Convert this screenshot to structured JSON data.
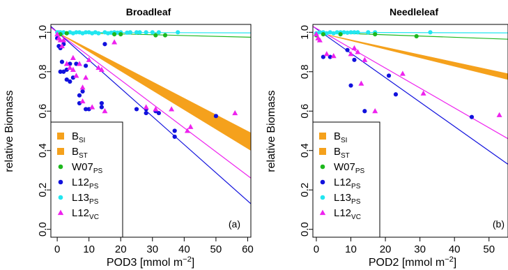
{
  "colors": {
    "B_band": "#f5a11c",
    "W07_PS": "#1db81d",
    "L12_PS": "#1111dd",
    "L13_PS": "#22e6f0",
    "L12_VC": "#ee22ee"
  },
  "legend": [
    {
      "key": "B_SI",
      "main": "B",
      "sub": "SI",
      "shape": "square",
      "color": "#f5a11c"
    },
    {
      "key": "B_ST",
      "main": "B",
      "sub": "ST",
      "shape": "square",
      "color": "#f5a11c"
    },
    {
      "key": "W07_PS",
      "main": "W07",
      "sub": "PS",
      "shape": "circle",
      "color": "#1db81d"
    },
    {
      "key": "L12_PS",
      "main": "L12",
      "sub": "PS",
      "shape": "circle",
      "color": "#1111dd"
    },
    {
      "key": "L13_PS",
      "main": "L13",
      "sub": "PS",
      "shape": "circle",
      "color": "#22e6f0"
    },
    {
      "key": "L12_VC",
      "main": "L12",
      "sub": "VC",
      "shape": "triangle",
      "color": "#ee22ee"
    }
  ],
  "chart_data": [
    {
      "type": "scatter",
      "title": "Broadleaf",
      "panel_tag": "(a)",
      "xlabel_main": "POD3 [mmol m",
      "xlabel_sup": "−2",
      "xlabel_end": "]",
      "ylabel": "relative Biomass",
      "xlim": [
        -2,
        61
      ],
      "ylim": [
        -0.04,
        1.04
      ],
      "xticks": [
        0,
        10,
        20,
        30,
        40,
        50,
        60
      ],
      "yticks": [
        0.0,
        0.2,
        0.4,
        0.6,
        0.8,
        1.0
      ],
      "band": {
        "x0": 0,
        "x1": 61,
        "lo": [
          1.0,
          0.4
        ],
        "hi": [
          1.0,
          0.49
        ]
      },
      "lines": [
        {
          "key": "W07_PS",
          "x0": 0,
          "y0": 1.0,
          "x1": 61,
          "y1": 0.975
        },
        {
          "key": "L13_PS",
          "x0": 0,
          "y0": 1.0,
          "x1": 61,
          "y1": 0.997
        },
        {
          "key": "L12_PS",
          "x0": -2,
          "y0": 1.03,
          "x1": 61,
          "y1": 0.13
        },
        {
          "key": "L12_VC",
          "x0": -2,
          "y0": 1.025,
          "x1": 61,
          "y1": 0.26
        }
      ],
      "series": [
        {
          "key": "L13_PS",
          "points": [
            [
              0,
              1.0
            ],
            [
              0.5,
              1.0
            ],
            [
              1,
              1.0
            ],
            [
              1.5,
              0.995
            ],
            [
              2,
              1.0
            ],
            [
              3,
              0.995
            ],
            [
              4,
              1.0
            ],
            [
              5,
              0.995
            ],
            [
              6,
              1.0
            ],
            [
              7,
              1.0
            ],
            [
              8,
              0.995
            ],
            [
              9,
              1.0
            ],
            [
              10,
              1.0
            ],
            [
              11,
              0.995
            ],
            [
              12,
              1.0
            ],
            [
              13,
              0.995
            ],
            [
              15,
              1.0
            ],
            [
              16,
              0.995
            ],
            [
              17,
              0.998
            ],
            [
              18,
              1.0
            ],
            [
              19,
              0.998
            ],
            [
              20,
              1.0
            ],
            [
              22,
              0.998
            ],
            [
              23,
              1.0
            ],
            [
              25,
              1.0
            ],
            [
              26,
              1.0
            ],
            [
              28,
              1.0
            ],
            [
              30,
              1.0
            ],
            [
              32,
              1.0
            ],
            [
              38,
              1.0
            ]
          ]
        },
        {
          "key": "W07_PS",
          "points": [
            [
              1,
              0.99
            ],
            [
              3,
              0.995
            ],
            [
              18,
              0.99
            ],
            [
              20,
              0.99
            ],
            [
              31,
              0.985
            ],
            [
              34,
              0.985
            ]
          ]
        },
        {
          "key": "L12_PS",
          "points": [
            [
              0,
              0.97
            ],
            [
              0.5,
              0.93
            ],
            [
              1,
              0.92
            ],
            [
              1.5,
              0.85
            ],
            [
              1,
              0.8
            ],
            [
              2,
              0.94
            ],
            [
              2,
              0.8
            ],
            [
              3,
              0.81
            ],
            [
              3,
              0.76
            ],
            [
              4,
              0.84
            ],
            [
              4,
              0.75
            ],
            [
              5,
              0.77
            ],
            [
              6,
              0.84
            ],
            [
              7,
              0.64
            ],
            [
              7,
              0.68
            ],
            [
              8,
              0.7
            ],
            [
              9,
              0.61
            ],
            [
              9,
              0.83
            ],
            [
              10,
              0.61
            ],
            [
              14,
              0.64
            ],
            [
              14,
              0.62
            ],
            [
              15,
              0.94
            ],
            [
              25,
              0.61
            ],
            [
              28,
              0.59
            ],
            [
              28,
              0.61
            ],
            [
              31,
              0.6
            ],
            [
              32,
              0.59
            ],
            [
              37,
              0.47
            ],
            [
              37,
              0.5
            ],
            [
              50,
              0.575
            ]
          ]
        },
        {
          "key": "L12_VC",
          "points": [
            [
              0,
              0.99
            ],
            [
              0.5,
              0.97
            ],
            [
              1,
              0.96
            ],
            [
              1.5,
              0.93
            ],
            [
              2,
              0.96
            ],
            [
              3,
              0.84
            ],
            [
              4,
              0.82
            ],
            [
              5,
              0.87
            ],
            [
              5,
              0.81
            ],
            [
              6,
              0.78
            ],
            [
              7,
              0.84
            ],
            [
              8,
              0.72
            ],
            [
              8,
              0.65
            ],
            [
              9,
              0.77
            ],
            [
              10,
              0.86
            ],
            [
              11,
              0.62
            ],
            [
              13,
              0.82
            ],
            [
              14,
              0.81
            ],
            [
              15,
              0.6
            ],
            [
              18,
              0.95
            ],
            [
              28,
              0.62
            ],
            [
              31,
              0.61
            ],
            [
              36,
              0.61
            ],
            [
              41,
              0.5
            ],
            [
              42,
              0.52
            ],
            [
              56,
              0.59
            ]
          ]
        }
      ]
    },
    {
      "type": "scatter",
      "title": "Needleleaf",
      "panel_tag": "(b)",
      "xlabel_main": "POD2 [mmol m",
      "xlabel_sup": "−2",
      "xlabel_end": "]",
      "ylabel": "relative Biomass",
      "xlim": [
        -1,
        55.5
      ],
      "ylim": [
        -0.04,
        1.04
      ],
      "xticks": [
        0,
        10,
        20,
        30,
        40,
        50
      ],
      "yticks": [
        0.0,
        0.2,
        0.4,
        0.6,
        0.8,
        1.0
      ],
      "band": {
        "x0": 0,
        "x1": 55.5,
        "lo": [
          1.0,
          0.76
        ],
        "hi": [
          1.0,
          0.79
        ]
      },
      "lines": [
        {
          "key": "W07_PS",
          "x0": 0,
          "y0": 1.0,
          "x1": 55.5,
          "y1": 0.965
        },
        {
          "key": "L13_PS",
          "x0": 0,
          "y0": 1.0,
          "x1": 55.5,
          "y1": 0.997
        },
        {
          "key": "L12_PS",
          "x0": -1,
          "y0": 1.03,
          "x1": 55.5,
          "y1": 0.33
        },
        {
          "key": "L12_VC",
          "x0": -1,
          "y0": 1.03,
          "x1": 55.5,
          "y1": 0.46
        }
      ],
      "series": [
        {
          "key": "L13_PS",
          "points": [
            [
              0,
              0.995
            ],
            [
              1,
              1.0
            ],
            [
              2,
              1.0
            ],
            [
              3,
              0.995
            ],
            [
              4,
              1.0
            ],
            [
              5,
              0.995
            ],
            [
              6,
              1.0
            ],
            [
              7,
              1.0
            ],
            [
              8,
              1.0
            ],
            [
              9,
              0.998
            ],
            [
              10,
              1.0
            ],
            [
              11,
              1.0
            ],
            [
              12,
              1.0
            ],
            [
              15,
              1.0
            ],
            [
              17,
              1.0
            ],
            [
              33,
              1.0
            ]
          ]
        },
        {
          "key": "W07_PS",
          "points": [
            [
              0,
              0.985
            ],
            [
              2,
              0.99
            ],
            [
              7,
              0.99
            ],
            [
              17,
              0.99
            ],
            [
              29,
              0.98
            ]
          ]
        },
        {
          "key": "L12_PS",
          "points": [
            [
              2,
              0.875
            ],
            [
              4,
              0.875
            ],
            [
              9,
              0.91
            ],
            [
              10,
              0.73
            ],
            [
              11,
              0.86
            ],
            [
              14,
              0.6
            ],
            [
              21,
              0.78
            ],
            [
              23,
              0.685
            ],
            [
              45,
              0.57
            ]
          ]
        },
        {
          "key": "L12_VC",
          "points": [
            [
              0,
              0.99
            ],
            [
              0.5,
              0.97
            ],
            [
              1,
              0.96
            ],
            [
              3,
              0.89
            ],
            [
              5,
              0.88
            ],
            [
              10,
              0.89
            ],
            [
              11,
              0.92
            ],
            [
              12,
              0.9
            ],
            [
              13,
              0.74
            ],
            [
              14,
              0.86
            ],
            [
              17,
              0.6
            ],
            [
              25,
              0.79
            ],
            [
              31,
              0.69
            ],
            [
              53,
              0.58
            ]
          ]
        }
      ]
    }
  ]
}
